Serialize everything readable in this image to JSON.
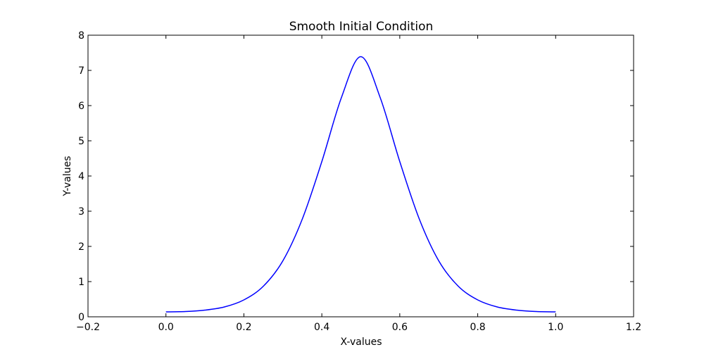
{
  "chart_data": {
    "type": "line",
    "title": "Smooth Initial Condition",
    "xlabel": "X-values",
    "ylabel": "Y-values",
    "xlim": [
      -0.2,
      1.2
    ],
    "ylim": [
      0,
      8
    ],
    "xticks": [
      "−0.2",
      "0.0",
      "0.2",
      "0.4",
      "0.6",
      "0.8",
      "1.0",
      "1.2"
    ],
    "yticks": [
      "0",
      "1",
      "2",
      "3",
      "4",
      "5",
      "6",
      "7",
      "8"
    ],
    "grid": false,
    "colors": {
      "line": "#0000ff",
      "axes": "#000000"
    },
    "series": [
      {
        "x": [
          0.0,
          0.05,
          0.1,
          0.15,
          0.2,
          0.25,
          0.3,
          0.35,
          0.4,
          0.45,
          0.5,
          0.55,
          0.6,
          0.65,
          0.7,
          0.75,
          0.8,
          0.85,
          0.9,
          0.95,
          1.0
        ],
        "y": [
          0.14,
          0.15,
          0.19,
          0.28,
          0.48,
          0.87,
          1.59,
          2.78,
          4.41,
          6.22,
          7.39,
          6.22,
          4.41,
          2.78,
          1.59,
          0.87,
          0.48,
          0.28,
          0.19,
          0.15,
          0.14
        ]
      }
    ]
  }
}
